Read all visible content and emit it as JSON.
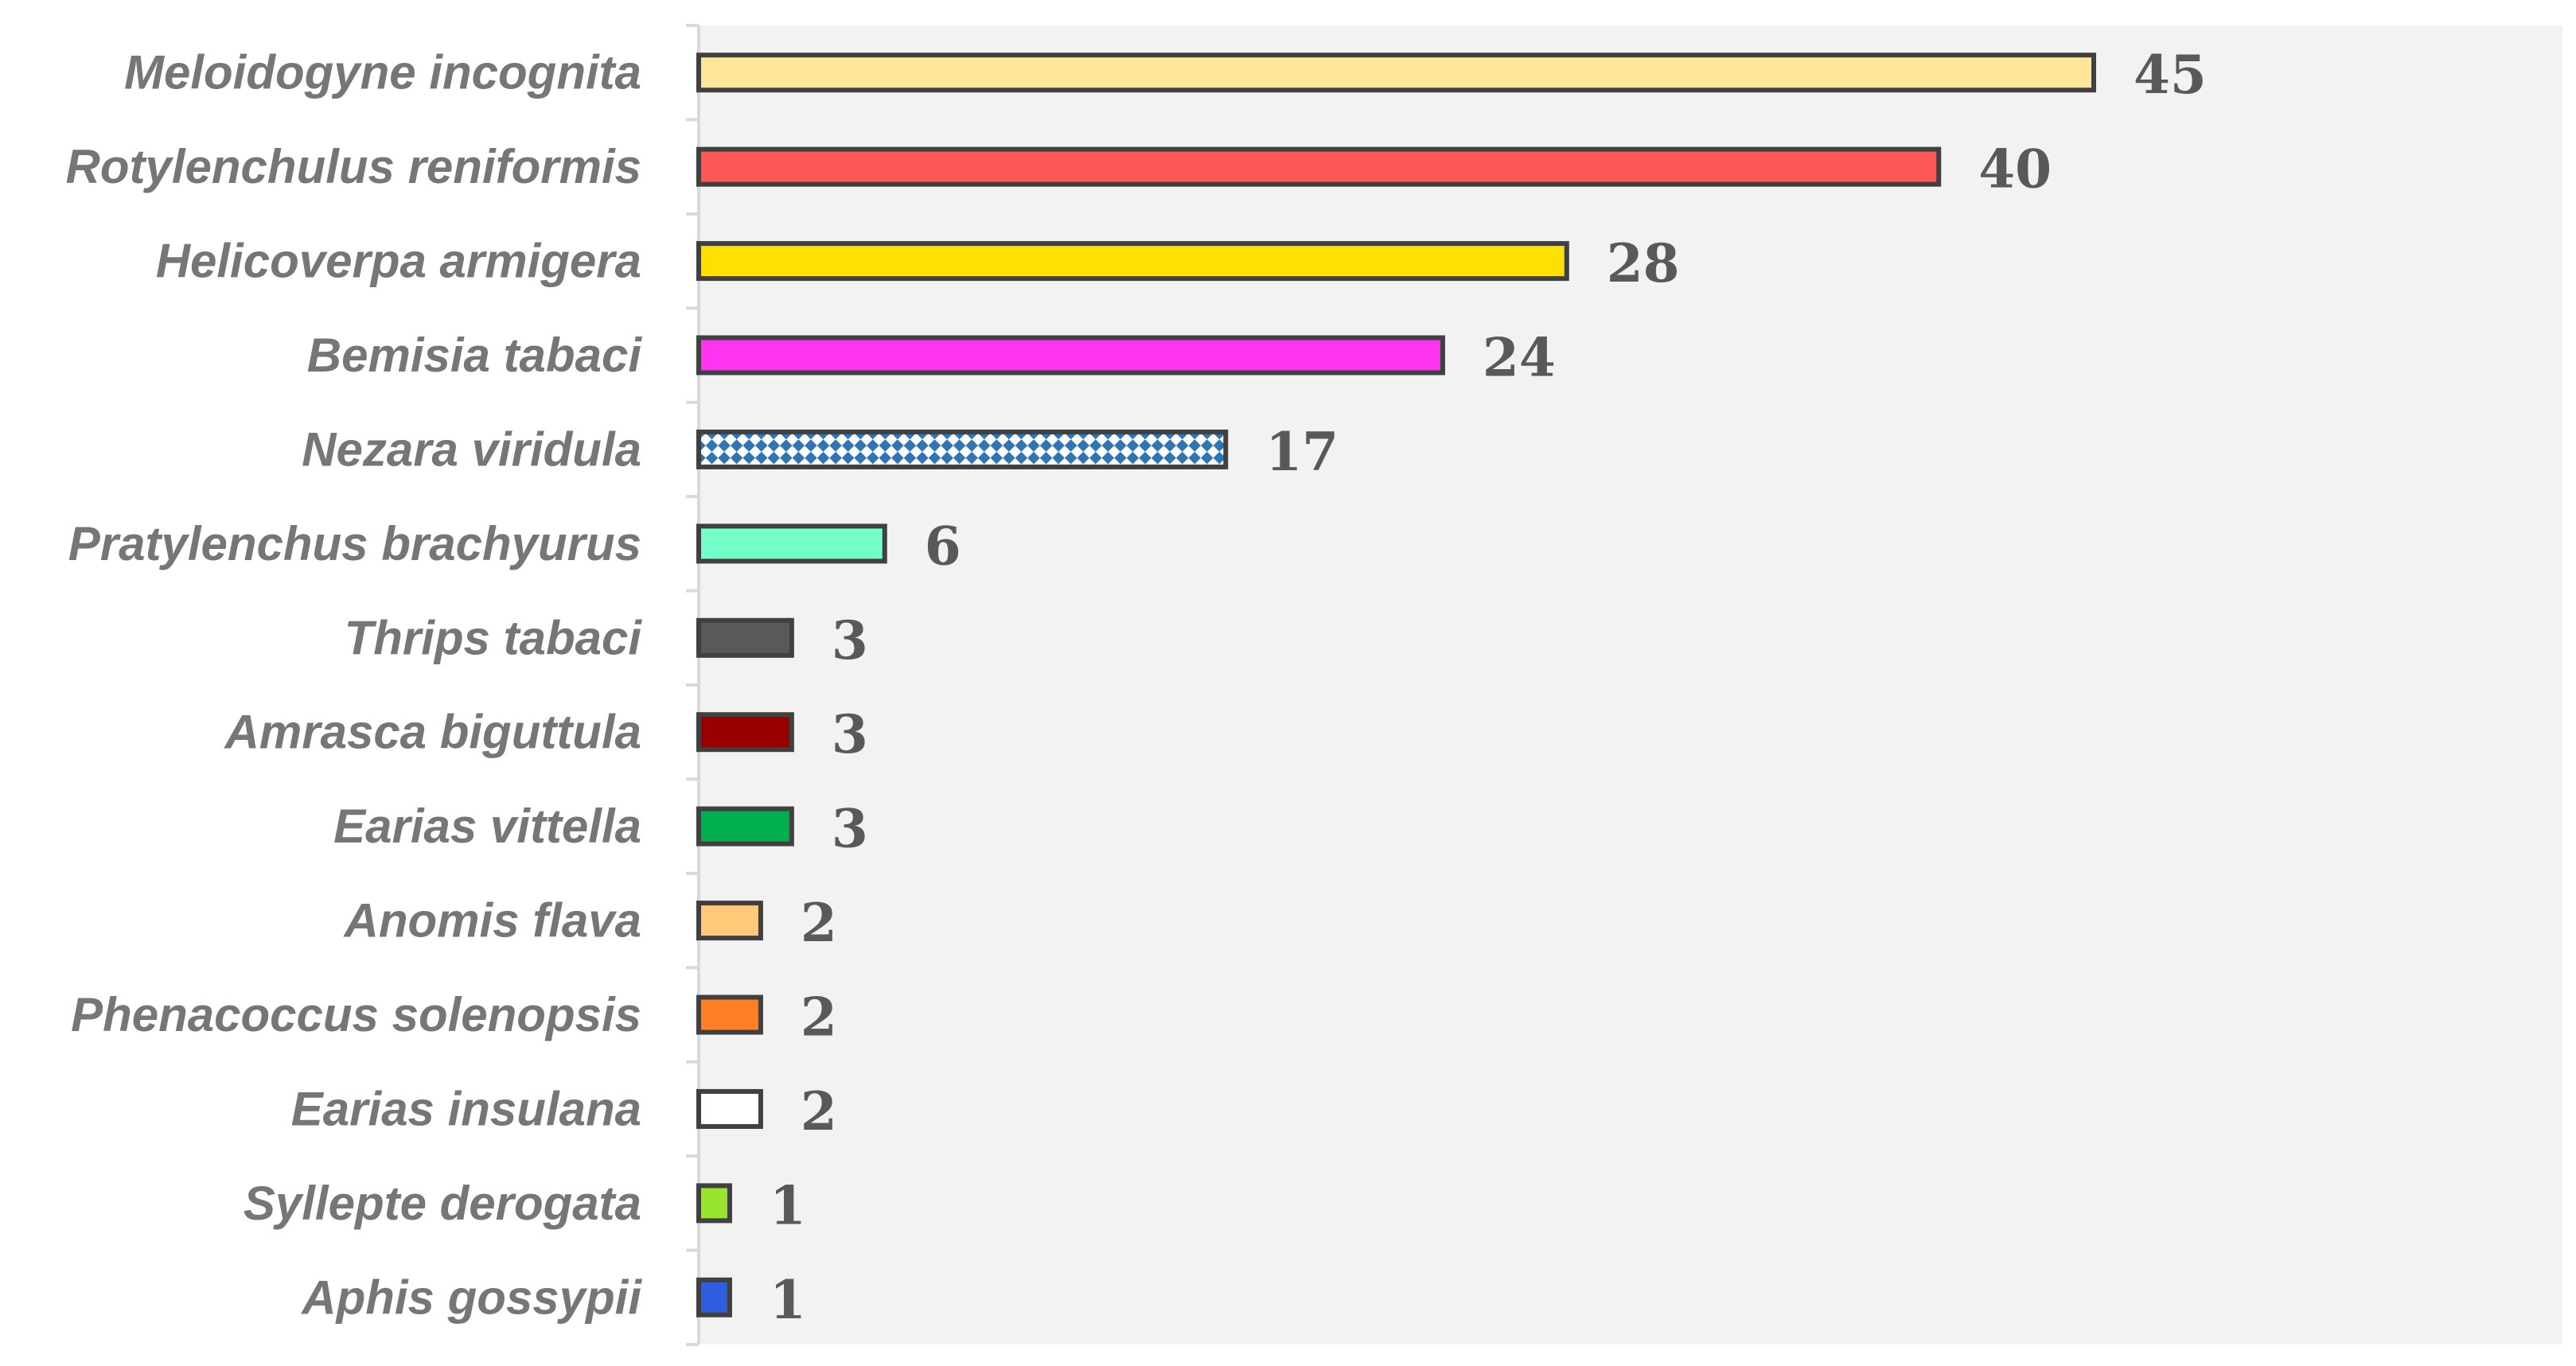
{
  "chart_data": {
    "type": "bar",
    "orientation": "horizontal",
    "categories": [
      "Meloidogyne incognita",
      "Rotylenchulus reniformis",
      "Helicoverpa armigera",
      "Bemisia tabaci",
      "Nezara viridula",
      "Pratylenchus brachyurus",
      "Thrips tabaci",
      "Amrasca biguttula",
      "Earias vittella",
      "Anomis flava",
      "Phenacoccus solenopsis",
      "Earias insulana ",
      "Syllepte derogata",
      "Aphis gossypii"
    ],
    "values": [
      45,
      40,
      28,
      24,
      17,
      6,
      3,
      3,
      3,
      2,
      2,
      2,
      1,
      1
    ],
    "value_labels": [
      "45",
      "40",
      "28",
      "24",
      "17",
      "6",
      "3",
      "3",
      "3",
      "2",
      "2",
      "2",
      "1",
      "1"
    ],
    "colors": [
      "#FFE699",
      "#FF5757",
      "#FFE000",
      "#FF33F0",
      "#2E75B6",
      "#73FFC7",
      "#595959",
      "#990000",
      "#00B050",
      "#FFC97A",
      "#FF7F27",
      "#FFFFFF",
      "#99E52E",
      "#2F5FE0"
    ],
    "patterns": [
      "solid",
      "solid",
      "solid",
      "solid",
      "diagonal-check",
      "solid",
      "solid",
      "solid",
      "solid",
      "solid",
      "solid",
      "solid",
      "solid",
      "solid"
    ],
    "bar_outline_color": "#404040",
    "plot_background": "#F2F2F2",
    "title": "",
    "xlabel": "",
    "ylabel": "",
    "xlim": [
      0,
      60
    ],
    "x_axis_visible": false,
    "grid": false,
    "legend": "none"
  }
}
